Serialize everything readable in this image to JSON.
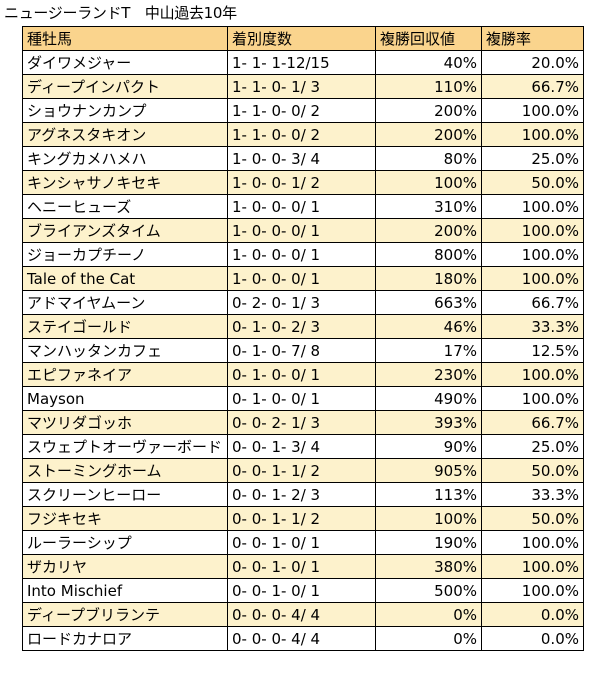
{
  "title": "ニュージーランドT　中山過去10年",
  "headers": [
    "種牡馬",
    "着別度数",
    "複勝回収値",
    "複勝率"
  ],
  "rows": [
    [
      "ダイワメジャー",
      "1- 1- 1-12/15",
      "40%",
      "20.0%"
    ],
    [
      "ディープインパクト",
      "1- 1- 0- 1/ 3",
      "110%",
      "66.7%"
    ],
    [
      "ショウナンカンプ",
      "1- 1- 0- 0/ 2",
      "200%",
      "100.0%"
    ],
    [
      "アグネスタキオン",
      "1- 1- 0- 0/ 2",
      "200%",
      "100.0%"
    ],
    [
      "キングカメハメハ",
      "1- 0- 0- 3/ 4",
      "80%",
      "25.0%"
    ],
    [
      "キンシャサノキセキ",
      "1- 0- 0- 1/ 2",
      "100%",
      "50.0%"
    ],
    [
      "ヘニーヒューズ",
      "1- 0- 0- 0/ 1",
      "310%",
      "100.0%"
    ],
    [
      "ブライアンズタイム",
      "1- 0- 0- 0/ 1",
      "200%",
      "100.0%"
    ],
    [
      "ジョーカプチーノ",
      "1- 0- 0- 0/ 1",
      "800%",
      "100.0%"
    ],
    [
      "Tale of the Cat",
      "1- 0- 0- 0/ 1",
      "180%",
      "100.0%"
    ],
    [
      "アドマイヤムーン",
      "0- 2- 0- 1/ 3",
      "663%",
      "66.7%"
    ],
    [
      "ステイゴールド",
      "0- 1- 0- 2/ 3",
      "46%",
      "33.3%"
    ],
    [
      "マンハッタンカフェ",
      "0- 1- 0- 7/ 8",
      "17%",
      "12.5%"
    ],
    [
      "エピファネイア",
      "0- 1- 0- 0/ 1",
      "230%",
      "100.0%"
    ],
    [
      "Mayson",
      "0- 1- 0- 0/ 1",
      "490%",
      "100.0%"
    ],
    [
      "マツリダゴッホ",
      "0- 0- 2- 1/ 3",
      "393%",
      "66.7%"
    ],
    [
      "スウェプトオーヴァーボード",
      "0- 0- 1- 3/ 4",
      "90%",
      "25.0%"
    ],
    [
      "ストーミングホーム",
      "0- 0- 1- 1/ 2",
      "905%",
      "50.0%"
    ],
    [
      "スクリーンヒーロー",
      "0- 0- 1- 2/ 3",
      "113%",
      "33.3%"
    ],
    [
      "フジキセキ",
      "0- 0- 1- 1/ 2",
      "100%",
      "50.0%"
    ],
    [
      "ルーラーシップ",
      "0- 0- 1- 0/ 1",
      "190%",
      "100.0%"
    ],
    [
      "ザカリヤ",
      "0- 0- 1- 0/ 1",
      "380%",
      "100.0%"
    ],
    [
      "Into Mischief",
      "0- 0- 1- 0/ 1",
      "500%",
      "100.0%"
    ],
    [
      "ディープブリランテ",
      "0- 0- 0- 4/ 4",
      "0%",
      "0.0%"
    ],
    [
      "ロードカナロア",
      "0- 0- 0- 4/ 4",
      "0%",
      "0.0%"
    ]
  ],
  "colors": {
    "header_bg": "#fad48d",
    "alt_row_bg": "#fdf2cc",
    "row_bg": "#ffffff",
    "border": "#000000"
  }
}
